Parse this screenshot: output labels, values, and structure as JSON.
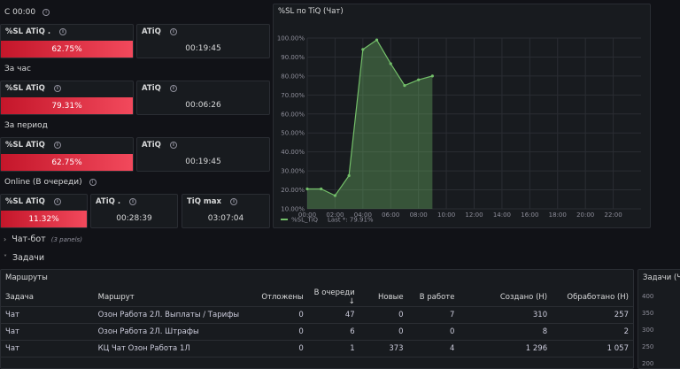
{
  "rows": {
    "since_midnight": "С 00:00",
    "per_hour": "За час",
    "per_period": "За период",
    "online": "Online (В очереди)"
  },
  "stats": {
    "sl1": {
      "title": "%SL ATiQ .",
      "value": "62.75%"
    },
    "atiq1": {
      "title": "ATiQ",
      "value": "00:19:45"
    },
    "sl2": {
      "title": "%SL ATiQ",
      "value": "79.31%"
    },
    "atiq2": {
      "title": "ATiQ",
      "value": "00:06:26"
    },
    "sl3": {
      "title": "%SL ATiQ",
      "value": "62.75%"
    },
    "atiq3": {
      "title": "ATiQ",
      "value": "00:19:45"
    },
    "sl4": {
      "title": "%SL ATiQ",
      "value": "11.32%"
    },
    "atiq4": {
      "title": "ATiQ .",
      "value": "00:28:39"
    },
    "tiqmax": {
      "title": "TiQ max",
      "value": "03:07:04"
    }
  },
  "colors": {
    "accent_red": "#f2495c",
    "line_green": "#73bf69"
  },
  "chart_data": {
    "type": "area",
    "title": "%SL по TiQ (Чат)",
    "x": [
      "00:00",
      "01:00",
      "02:00",
      "03:00",
      "04:00",
      "05:00",
      "06:00",
      "07:00",
      "08:00",
      "09:00"
    ],
    "series": [
      {
        "name": "%SL_TiQ",
        "values": [
          20.5,
          20.5,
          17,
          27.5,
          94,
          99,
          86.5,
          75,
          78,
          80
        ]
      }
    ],
    "ylim": [
      10,
      100
    ],
    "yticks": [
      "10.00%",
      "20.00%",
      "30.00%",
      "40.00%",
      "50.00%",
      "60.00%",
      "70.00%",
      "80.00%",
      "90.00%",
      "100.00%"
    ],
    "xticks": [
      "00:00",
      "02:00",
      "04:00",
      "06:00",
      "08:00",
      "10:00",
      "12:00",
      "14:00",
      "16:00",
      "18:00",
      "20:00",
      "22:00"
    ],
    "legend_name": "%SL_TiQ",
    "legend_last": "Last *: 79.91%"
  },
  "sections": {
    "chatbot": "Чат-бот",
    "chatbot_sub": "(3 panels)",
    "tasks": "Задачи"
  },
  "routes": {
    "title": "Маршруты",
    "columns": [
      "Задача",
      "Маршрут",
      "Отложены",
      "В очереди ↓",
      "Новые",
      "В работе",
      "Создано (Н)",
      "Обработано (Н)"
    ],
    "rows": [
      [
        "Чат",
        "Озон Работа 2Л. Выплаты / Тарифы",
        "0",
        "47",
        "0",
        "7",
        "310",
        "257"
      ],
      [
        "Чат",
        "Озон Работа 2Л. Штрафы",
        "0",
        "6",
        "0",
        "0",
        "8",
        "2"
      ],
      [
        "Чат",
        "КЦ Чат Озон Работа 1Л",
        "0",
        "1",
        "373",
        "4",
        "1 296",
        "1 057"
      ]
    ]
  },
  "side_panel": {
    "title": "Задачи (Ч",
    "yticks": [
      "400",
      "350",
      "300",
      "250",
      "200"
    ]
  }
}
